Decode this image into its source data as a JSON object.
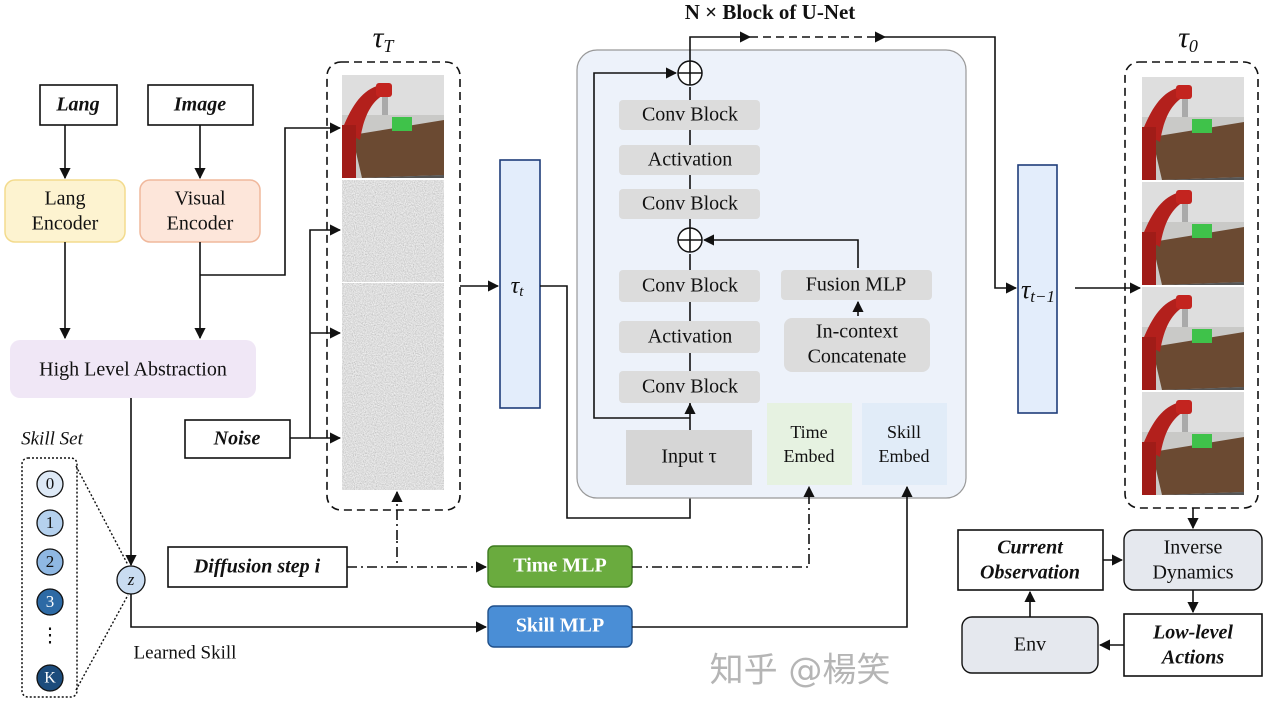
{
  "title": "N × Block of U-Net",
  "inputs": {
    "lang": "Lang",
    "image": "Image",
    "noise": "Noise",
    "diffusion_step": "Diffusion step i"
  },
  "encoders": {
    "lang_line1": "Lang",
    "lang_line2": "Encoder",
    "visual_line1": "Visual",
    "visual_line2": "Encoder"
  },
  "abstraction": "High Level Abstraction",
  "skill_set": {
    "label": "Skill Set",
    "items": [
      "0",
      "1",
      "2",
      "3",
      "K"
    ],
    "ellipsis": "⋮",
    "z": "z",
    "learned_label": "Learned Skill"
  },
  "tau": {
    "tau_T": "τ",
    "tau_T_sub": "T",
    "tau_t": "τ",
    "tau_t_sub": "t",
    "tau_t1": "τ",
    "tau_t1_sub": "t−1",
    "tau_0": "τ",
    "tau_0_sub": "0"
  },
  "unet": {
    "blocks_upper": [
      "Conv Block",
      "Activation",
      "Conv Block"
    ],
    "blocks_lower": [
      "Conv Block",
      "Activation",
      "Conv Block"
    ],
    "fusion": "Fusion MLP",
    "concat_line1": "In-context",
    "concat_line2": "Concatenate",
    "input": "Input τ",
    "time_embed_1": "Time",
    "time_embed_2": "Embed",
    "skill_embed_1": "Skill",
    "skill_embed_2": "Embed"
  },
  "mlps": {
    "time": "Time MLP",
    "skill": "Skill MLP"
  },
  "execution": {
    "obs_1": "Current",
    "obs_2": "Observation",
    "inv_1": "Inverse",
    "inv_2": "Dynamics",
    "act_1": "Low-level",
    "act_2": "Actions",
    "env": "Env"
  },
  "watermark": "知乎 @楊笑",
  "colors": {
    "lang_encoder": "#fdf3d0",
    "visual_encoder": "#fde6da",
    "abstraction": "#f0e7f6",
    "unet_bg": "#edf2fa",
    "time_mlp": "#6aab3e",
    "skill_mlp": "#4a8ed6",
    "tau_bar": "#e3edfb"
  }
}
